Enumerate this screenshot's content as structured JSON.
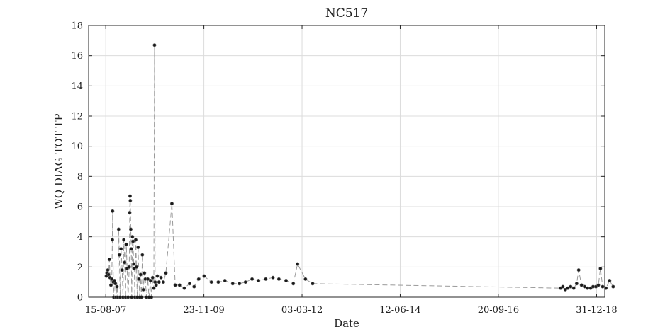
{
  "chart_data": {
    "type": "scatter",
    "title": "NC517",
    "xlabel": "Date",
    "ylabel": "WQ DIAG TOT TP",
    "ylim": [
      0,
      18
    ],
    "xlim": [
      "2007-03-23",
      "2019-03-10"
    ],
    "yticks": [
      "0",
      "2",
      "4",
      "6",
      "8",
      "10",
      "12",
      "14",
      "16",
      "18"
    ],
    "xticks": [
      "15-08-07",
      "23-11-09",
      "03-03-12",
      "12-06-14",
      "20-09-16",
      "31-12-18"
    ],
    "xtick_dates": [
      "2007-08-15",
      "2009-11-23",
      "2012-03-03",
      "2014-06-12",
      "2016-09-20",
      "2018-12-31"
    ],
    "grid": true,
    "line_style": "dashed",
    "marker": "circle",
    "points": [
      [
        "2007-08-20",
        1.4
      ],
      [
        "2007-08-25",
        1.6
      ],
      [
        "2007-09-01",
        1.8
      ],
      [
        "2007-09-08",
        1.5
      ],
      [
        "2007-09-15",
        2.5
      ],
      [
        "2007-09-20",
        1.3
      ],
      [
        "2007-09-28",
        0.8
      ],
      [
        "2007-10-05",
        1.2
      ],
      [
        "2007-10-10",
        3.8
      ],
      [
        "2007-10-12",
        5.7
      ],
      [
        "2007-10-18",
        1.0
      ],
      [
        "2007-10-22",
        0.0
      ],
      [
        "2007-10-28",
        1.1
      ],
      [
        "2007-11-05",
        0.9
      ],
      [
        "2007-11-10",
        0.0
      ],
      [
        "2007-11-18",
        0.7
      ],
      [
        "2007-11-25",
        0.0
      ],
      [
        "2007-12-02",
        4.5
      ],
      [
        "2007-12-08",
        2.8
      ],
      [
        "2007-12-15",
        0.0
      ],
      [
        "2007-12-22",
        3.2
      ],
      [
        "2008-01-01",
        1.8
      ],
      [
        "2008-01-08",
        0.0
      ],
      [
        "2008-01-15",
        3.8
      ],
      [
        "2008-01-22",
        2.3
      ],
      [
        "2008-01-30",
        0.0
      ],
      [
        "2008-02-05",
        3.5
      ],
      [
        "2008-02-12",
        1.9
      ],
      [
        "2008-02-20",
        0.0
      ],
      [
        "2008-03-01",
        2.0
      ],
      [
        "2008-03-05",
        5.6
      ],
      [
        "2008-03-08",
        6.7
      ],
      [
        "2008-03-10",
        6.4
      ],
      [
        "2008-03-14",
        4.5
      ],
      [
        "2008-03-18",
        3.2
      ],
      [
        "2008-03-22",
        0.0
      ],
      [
        "2008-03-28",
        4.0
      ],
      [
        "2008-04-02",
        3.7
      ],
      [
        "2008-04-08",
        2.2
      ],
      [
        "2008-04-12",
        1.9
      ],
      [
        "2008-04-18",
        0.0
      ],
      [
        "2008-04-25",
        3.8
      ],
      [
        "2008-05-01",
        2.0
      ],
      [
        "2008-05-08",
        0.0
      ],
      [
        "2008-05-15",
        3.3
      ],
      [
        "2008-05-22",
        1.2
      ],
      [
        "2008-05-28",
        0.0
      ],
      [
        "2008-06-05",
        1.5
      ],
      [
        "2008-06-12",
        0.0
      ],
      [
        "2008-06-20",
        2.8
      ],
      [
        "2008-06-28",
        0.5
      ],
      [
        "2008-07-08",
        1.6
      ],
      [
        "2008-07-15",
        1.2
      ],
      [
        "2008-07-25",
        0.0
      ],
      [
        "2008-08-05",
        1.2
      ],
      [
        "2008-08-15",
        0.0
      ],
      [
        "2008-08-28",
        1.1
      ],
      [
        "2008-09-05",
        0.0
      ],
      [
        "2008-09-15",
        1.3
      ],
      [
        "2008-09-25",
        0.6
      ],
      [
        "2008-10-01",
        16.7
      ],
      [
        "2008-10-06",
        1.0
      ],
      [
        "2008-10-15",
        0.8
      ],
      [
        "2008-10-25",
        1.4
      ],
      [
        "2008-11-08",
        1.0
      ],
      [
        "2008-11-25",
        1.3
      ],
      [
        "2008-12-15",
        1.0
      ],
      [
        "2009-01-05",
        1.6
      ],
      [
        "2009-02-25",
        6.2
      ],
      [
        "2009-03-25",
        0.8
      ],
      [
        "2009-05-01",
        0.8
      ],
      [
        "2009-06-10",
        0.6
      ],
      [
        "2009-07-25",
        0.9
      ],
      [
        "2009-09-01",
        0.7
      ],
      [
        "2009-10-10",
        1.2
      ],
      [
        "2009-11-25",
        1.4
      ],
      [
        "2010-01-25",
        1.0
      ],
      [
        "2010-03-25",
        1.0
      ],
      [
        "2010-05-20",
        1.1
      ],
      [
        "2010-07-25",
        0.9
      ],
      [
        "2010-09-20",
        0.9
      ],
      [
        "2010-11-10",
        1.0
      ],
      [
        "2011-01-05",
        1.2
      ],
      [
        "2011-03-01",
        1.1
      ],
      [
        "2011-05-01",
        1.2
      ],
      [
        "2011-07-01",
        1.3
      ],
      [
        "2011-08-20",
        1.2
      ],
      [
        "2011-10-20",
        1.1
      ],
      [
        "2011-12-20",
        0.9
      ],
      [
        "2012-01-25",
        2.2
      ],
      [
        "2012-04-01",
        1.2
      ],
      [
        "2012-06-01",
        0.9
      ],
      [
        "2018-03-01",
        0.6
      ],
      [
        "2018-03-20",
        0.7
      ],
      [
        "2018-04-10",
        0.5
      ],
      [
        "2018-05-01",
        0.6
      ],
      [
        "2018-05-25",
        0.7
      ],
      [
        "2018-06-20",
        0.6
      ],
      [
        "2018-07-15",
        0.9
      ],
      [
        "2018-08-01",
        1.8
      ],
      [
        "2018-08-25",
        0.8
      ],
      [
        "2018-09-20",
        0.7
      ],
      [
        "2018-10-15",
        0.6
      ],
      [
        "2018-11-10",
        0.6
      ],
      [
        "2018-12-01",
        0.7
      ],
      [
        "2018-12-25",
        0.7
      ],
      [
        "2019-01-15",
        0.8
      ],
      [
        "2019-02-01",
        1.9
      ],
      [
        "2019-02-20",
        0.7
      ],
      [
        "2019-03-20",
        0.6
      ],
      [
        "2019-04-20",
        1.1
      ],
      [
        "2019-05-20",
        0.7
      ]
    ]
  }
}
